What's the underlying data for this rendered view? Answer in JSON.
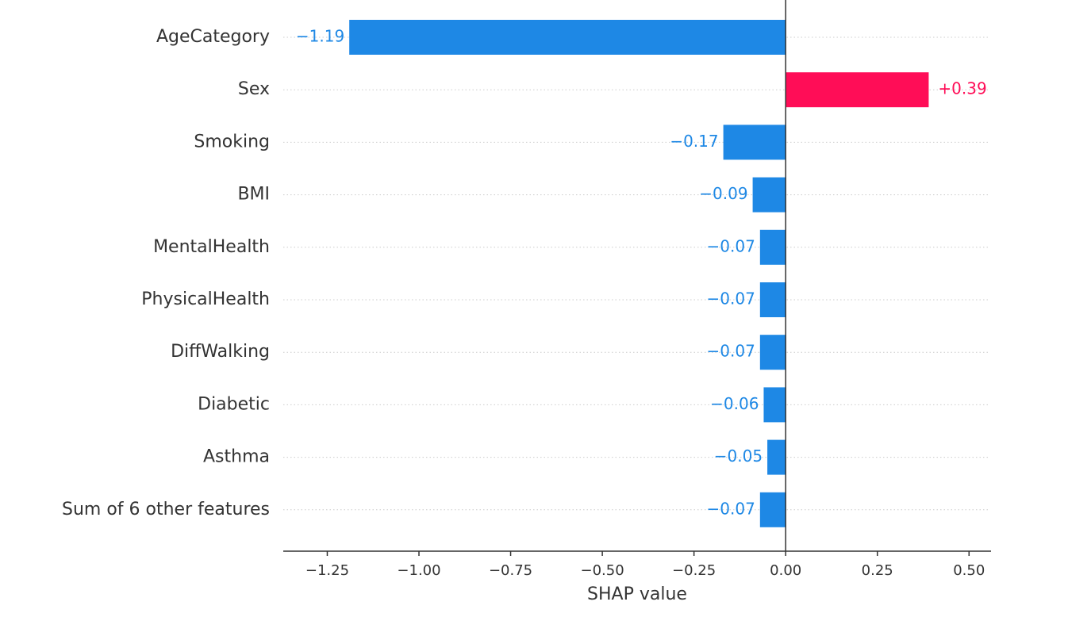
{
  "chart_data": {
    "type": "barh",
    "categories": [
      "AgeCategory",
      "Sex",
      "Smoking",
      "BMI",
      "MentalHealth",
      "PhysicalHealth",
      "DiffWalking",
      "Diabetic",
      "Asthma",
      "Sum of 6 other features"
    ],
    "values": [
      -1.19,
      0.39,
      -0.17,
      -0.09,
      -0.07,
      -0.07,
      -0.07,
      -0.06,
      -0.05,
      -0.07
    ],
    "value_labels": [
      "−1.19",
      "+0.39",
      "−0.17",
      "−0.09",
      "−0.07",
      "−0.07",
      "−0.07",
      "−0.06",
      "−0.05",
      "−0.07"
    ],
    "positive_color": "#ff0d57",
    "negative_color": "#1e88e5",
    "xlabel": "SHAP value",
    "xlim": [
      -1.37,
      0.56
    ],
    "xticks": [
      {
        "value": -1.25,
        "label": "−1.25"
      },
      {
        "value": -1.0,
        "label": "−1.00"
      },
      {
        "value": -0.75,
        "label": "−0.75"
      },
      {
        "value": -0.5,
        "label": "−0.50"
      },
      {
        "value": -0.25,
        "label": "−0.25"
      },
      {
        "value": 0,
        "label": "0.00"
      },
      {
        "value": 0.25,
        "label": "0.25"
      },
      {
        "value": 0.5,
        "label": "0.50"
      }
    ],
    "grid": true
  }
}
